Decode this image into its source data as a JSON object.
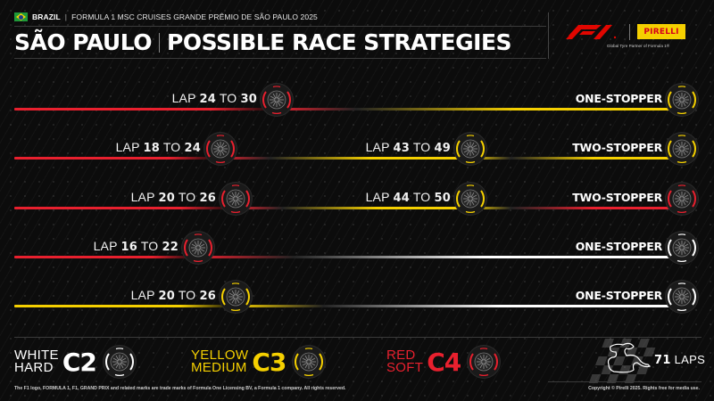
{
  "header": {
    "country": "BRAZIL",
    "event": "FORMULA 1 MSC CRUISES GRANDE PRÊMIO DE SÃO PAULO 2025",
    "title_left": "SÃO PAULO",
    "title_right": "POSSIBLE RACE STRATEGIES",
    "flag_icon": "brazil-flag-icon"
  },
  "branding": {
    "f1_logo": "F1",
    "pirelli_logo": "PIRELLI",
    "partner_tagline": "Global Tyre Partner of Formula 1®"
  },
  "colors": {
    "soft_red": "#e8202e",
    "medium_yellow": "#f5d000",
    "hard_white": "#ffffff",
    "background": "#0c0c0c"
  },
  "strategies": [
    {
      "name": "ONE-STOPPER",
      "stints": [
        {
          "compound": "soft",
          "color": "#e8202e"
        },
        {
          "compound": "medium",
          "color": "#f5d000"
        }
      ],
      "stops": [
        {
          "lap_prefix": "LAP",
          "from": "24",
          "to_word": "TO",
          "to": "30",
          "compound": "soft"
        }
      ],
      "final_tyre": "medium"
    },
    {
      "name": "TWO-STOPPER",
      "stints": [
        {
          "compound": "soft",
          "color": "#e8202e"
        },
        {
          "compound": "medium",
          "color": "#f5d000"
        },
        {
          "compound": "medium",
          "color": "#f5d000"
        }
      ],
      "stops": [
        {
          "lap_prefix": "LAP",
          "from": "18",
          "to_word": "TO",
          "to": "24",
          "compound": "soft"
        },
        {
          "lap_prefix": "LAP",
          "from": "43",
          "to_word": "TO",
          "to": "49",
          "compound": "medium"
        }
      ],
      "final_tyre": "medium"
    },
    {
      "name": "TWO-STOPPER",
      "stints": [
        {
          "compound": "soft",
          "color": "#e8202e"
        },
        {
          "compound": "medium",
          "color": "#f5d000"
        },
        {
          "compound": "soft",
          "color": "#e8202e"
        }
      ],
      "stops": [
        {
          "lap_prefix": "LAP",
          "from": "20",
          "to_word": "TO",
          "to": "26",
          "compound": "soft"
        },
        {
          "lap_prefix": "LAP",
          "from": "44",
          "to_word": "TO",
          "to": "50",
          "compound": "medium"
        }
      ],
      "final_tyre": "soft"
    },
    {
      "name": "ONE-STOPPER",
      "stints": [
        {
          "compound": "soft",
          "color": "#e8202e"
        },
        {
          "compound": "hard",
          "color": "#ffffff"
        }
      ],
      "stops": [
        {
          "lap_prefix": "LAP",
          "from": "16",
          "to_word": "TO",
          "to": "22",
          "compound": "soft"
        }
      ],
      "final_tyre": "hard"
    },
    {
      "name": "ONE-STOPPER",
      "stints": [
        {
          "compound": "medium",
          "color": "#f5d000"
        },
        {
          "compound": "hard",
          "color": "#ffffff"
        }
      ],
      "stops": [
        {
          "lap_prefix": "LAP",
          "from": "20",
          "to_word": "TO",
          "to": "26",
          "compound": "medium"
        }
      ],
      "final_tyre": "hard"
    }
  ],
  "legend": {
    "hard": {
      "color_name": "WHITE",
      "type": "HARD",
      "code": "C2",
      "color": "#ffffff"
    },
    "medium": {
      "color_name": "YELLOW",
      "type": "MEDIUM",
      "code": "C3",
      "color": "#f5d000"
    },
    "soft": {
      "color_name": "RED",
      "type": "SOFT",
      "code": "C4",
      "color": "#e8202e"
    }
  },
  "race": {
    "laps_number": "71",
    "laps_label": "LAPS",
    "track_icon": "interlagos-track-icon"
  },
  "footer": {
    "left": "The F1 logo, FORMULA 1, F1, GRAND PRIX and related marks are trade marks of Formula One Licensing BV, a Formula 1 company. All rights reserved.",
    "right": "Copyright © Pirelli 2025. Rights free for media use."
  }
}
